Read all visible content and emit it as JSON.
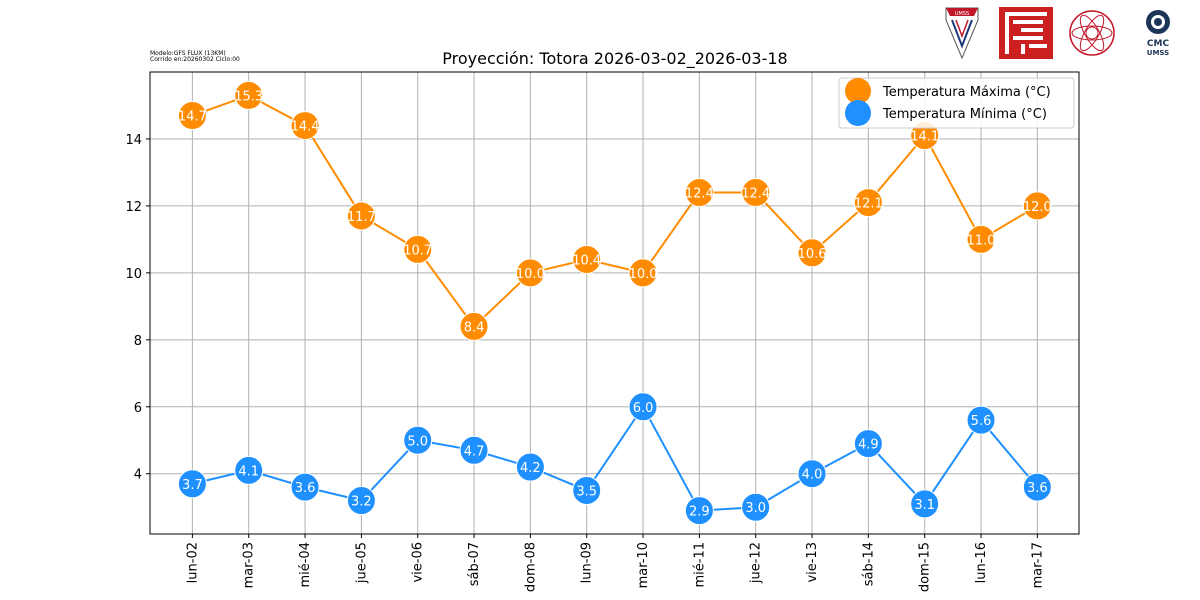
{
  "header": {
    "model_line": "Modelo:GFS FLUX (13KM)",
    "run_line": "Corrido en:20260302 Ciclo:00"
  },
  "logos": {
    "umss_text": "UMSS",
    "cmc_text": "CMC",
    "cmc_sub": "UMSS"
  },
  "colors": {
    "max": "#ff8c00",
    "min": "#1e90ff",
    "grid": "#b0b0b0"
  },
  "chart_data": {
    "type": "line",
    "title": "Proyección: Totora 2026-03-02_2026-03-18",
    "xlabel": "",
    "ylabel": "",
    "categories": [
      "lun-02",
      "mar-03",
      "mié-04",
      "jue-05",
      "vie-06",
      "sáb-07",
      "dom-08",
      "lun-09",
      "mar-10",
      "mié-11",
      "jue-12",
      "vie-13",
      "sáb-14",
      "dom-15",
      "lun-16",
      "mar-17"
    ],
    "series": [
      {
        "name": "Temperatura Máxima  (°C)",
        "color": "#ff8c00",
        "values": [
          14.7,
          15.3,
          14.4,
          11.7,
          10.7,
          8.4,
          10.0,
          10.4,
          10.0,
          12.4,
          12.4,
          10.6,
          12.1,
          14.1,
          11.0,
          12.0
        ]
      },
      {
        "name": "Temperatura Mínima  (°C)",
        "color": "#1e90ff",
        "values": [
          3.7,
          4.1,
          3.6,
          3.2,
          5.0,
          4.7,
          4.2,
          3.5,
          6.0,
          2.9,
          3.0,
          4.0,
          4.9,
          3.1,
          5.6,
          3.6
        ]
      }
    ],
    "y_ticks": [
      4,
      6,
      8,
      10,
      12,
      14
    ],
    "ylim": [
      2.2,
      16.0
    ],
    "grid": true,
    "legend": "top-right"
  }
}
